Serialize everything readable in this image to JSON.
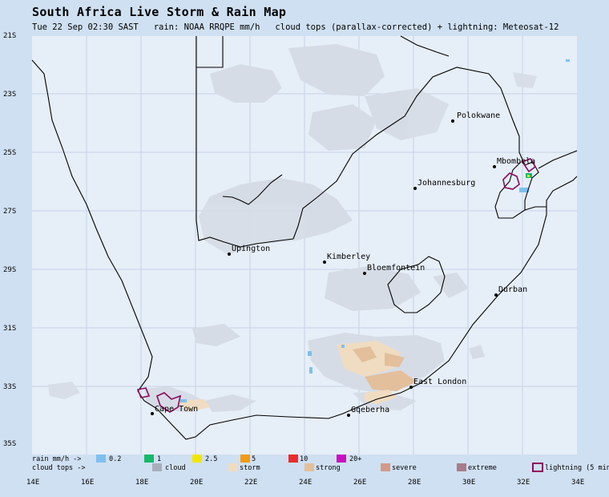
{
  "header": {
    "title": "South Africa Live Storm & Rain Map",
    "subtitle": "Tue 22 Sep 02:30 SAST   rain: NOAA RRQPE mm/h   cloud tops (parallax-corrected) + lightning: Meteosat-12"
  },
  "map": {
    "lat_labels": [
      "21S",
      "23S",
      "25S",
      "27S",
      "29S",
      "31S",
      "33S",
      "35S"
    ],
    "lon_labels": [
      "14E",
      "16E",
      "18E",
      "20E",
      "22E",
      "24E",
      "26E",
      "28E",
      "30E",
      "32E",
      "34E"
    ],
    "cities": [
      {
        "name": "Polokwane",
        "lon": 29.45,
        "lat": -23.9
      },
      {
        "name": "Mbombela",
        "lon": 30.97,
        "lat": -25.47
      },
      {
        "name": "Johannesburg",
        "lon": 28.04,
        "lat": -26.2
      },
      {
        "name": "Upington",
        "lon": 21.26,
        "lat": -28.45
      },
      {
        "name": "Kimberley",
        "lon": 24.76,
        "lat": -28.73
      },
      {
        "name": "Bloemfontein",
        "lon": 26.21,
        "lat": -29.12
      },
      {
        "name": "Durban",
        "lon": 31.02,
        "lat": -29.86
      },
      {
        "name": "East London",
        "lon": 27.9,
        "lat": -33.02
      },
      {
        "name": "Gqeberha",
        "lon": 25.6,
        "lat": -33.96
      },
      {
        "name": "Cape Town",
        "lon": 18.42,
        "lat": -33.92
      }
    ]
  },
  "legend": {
    "rain_label": "rain mm/h ->",
    "cloud_label": "cloud tops ->",
    "rain": [
      {
        "label": "0.2",
        "color": "#7fc0ee"
      },
      {
        "label": "1",
        "color": "#16b86a"
      },
      {
        "label": "2.5",
        "color": "#f2e600"
      },
      {
        "label": "5",
        "color": "#f29a12"
      },
      {
        "label": "10",
        "color": "#ee2a2a"
      },
      {
        "label": "20+",
        "color": "#c810c0"
      }
    ],
    "cloud": [
      {
        "label": "cloud",
        "color": "#a9afba"
      },
      {
        "label": "storm",
        "color": "#f0dcc0"
      },
      {
        "label": "strong",
        "color": "#e3bf9b"
      },
      {
        "label": "severe",
        "color": "#d39a8a"
      },
      {
        "label": "extreme",
        "color": "#a87c8a"
      }
    ],
    "lightning_label": "lightning (5 min)",
    "lightning_color": "#8a0a5a"
  }
}
